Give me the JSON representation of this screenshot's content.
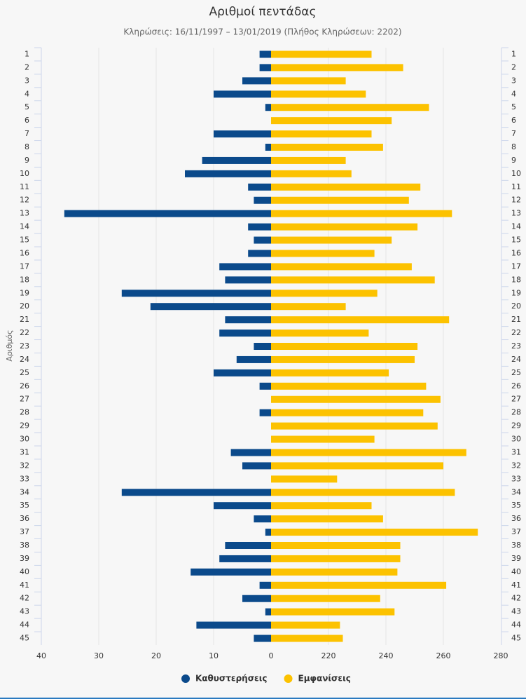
{
  "chart_data": {
    "type": "butterfly",
    "title": "Αριθμοί πεντάδας",
    "subtitle": "Κληρώσεις: 16/11/1997 – 13/01/2019 (Πλήθος Κληρώσεων: 2202)",
    "y_label": "Αριθμός",
    "categories": [
      "1",
      "2",
      "3",
      "4",
      "5",
      "6",
      "7",
      "8",
      "9",
      "10",
      "11",
      "12",
      "13",
      "14",
      "15",
      "16",
      "17",
      "18",
      "19",
      "20",
      "21",
      "22",
      "23",
      "24",
      "25",
      "26",
      "27",
      "28",
      "29",
      "30",
      "31",
      "32",
      "33",
      "34",
      "35",
      "36",
      "37",
      "38",
      "39",
      "40",
      "41",
      "42",
      "43",
      "44",
      "45"
    ],
    "xlim": [
      40,
      0
    ],
    "xticks": [
      40,
      30,
      20,
      10,
      0
    ],
    "x2lim": [
      200,
      280
    ],
    "x2ticks": [
      220,
      240,
      260,
      280
    ],
    "grid": true,
    "legend": "bottom",
    "series": [
      {
        "name": "Καθυστερήσεις",
        "color": "#0b4a8b",
        "axis": "x",
        "values": [
          2,
          2,
          5,
          10,
          1,
          0,
          10,
          1,
          12,
          15,
          4,
          3,
          36,
          4,
          3,
          4,
          9,
          8,
          26,
          21,
          8,
          9,
          3,
          6,
          10,
          2,
          0,
          2,
          0,
          0,
          7,
          5,
          0,
          26,
          10,
          3,
          1,
          8,
          9,
          14,
          2,
          5,
          1,
          13,
          3
        ]
      },
      {
        "name": "Εμφανίσεις",
        "color": "#fcc200",
        "axis": "x2",
        "values": [
          235,
          246,
          226,
          233,
          255,
          242,
          235,
          239,
          226,
          228,
          252,
          248,
          263,
          251,
          242,
          236,
          249,
          257,
          237,
          226,
          262,
          234,
          251,
          250,
          241,
          254,
          259,
          253,
          258,
          236,
          268,
          260,
          223,
          264,
          235,
          239,
          272,
          245,
          245,
          244,
          261,
          238,
          243,
          224,
          225
        ]
      }
    ]
  }
}
